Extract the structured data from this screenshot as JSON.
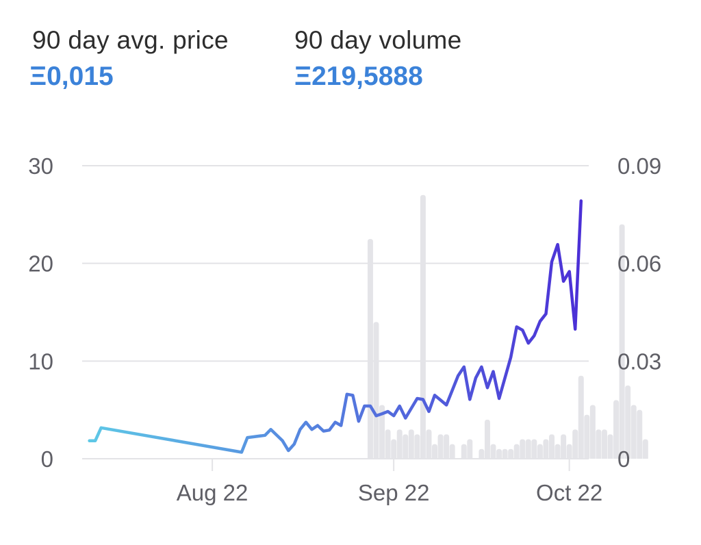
{
  "stats": {
    "avg_price": {
      "label": "90 day avg. price",
      "value": "Ξ0,015"
    },
    "volume": {
      "label": "90 day volume",
      "value": "Ξ219,5888"
    }
  },
  "chart_data": {
    "type": "line",
    "left_axis": {
      "ticks": [
        "0",
        "10",
        "20",
        "30"
      ],
      "range": [
        0,
        30
      ]
    },
    "right_axis": {
      "ticks": [
        "0",
        "0.03",
        "0.06",
        "0.09"
      ],
      "range": [
        0,
        0.09
      ]
    },
    "x_ticks": [
      {
        "label": "Aug 22",
        "day": 22
      },
      {
        "label": "Sep 22",
        "day": 53
      },
      {
        "label": "Oct 22",
        "day": 83
      }
    ],
    "grid": true,
    "colors": {
      "line_start": "#5ec8e6",
      "line_end": "#4b2fd6",
      "bars": "#e4e4e8",
      "grid": "#e3e3e6"
    },
    "series": [
      {
        "kind": "bars",
        "axis": "left",
        "points": [
          [
            49,
            22.5
          ],
          [
            50,
            14
          ],
          [
            51,
            5.5
          ],
          [
            52,
            3
          ],
          [
            53,
            2
          ],
          [
            54,
            3
          ],
          [
            55,
            2.5
          ],
          [
            56,
            3
          ],
          [
            57,
            2.5
          ],
          [
            58,
            27
          ],
          [
            59,
            3
          ],
          [
            60,
            1.5
          ],
          [
            61,
            2.5
          ],
          [
            62,
            2.5
          ],
          [
            63,
            1.5
          ],
          [
            65,
            1.5
          ],
          [
            66,
            2
          ],
          [
            68,
            1
          ],
          [
            69,
            4
          ],
          [
            70,
            1.5
          ],
          [
            71,
            1
          ],
          [
            72,
            1
          ],
          [
            73,
            1
          ],
          [
            74,
            1.5
          ],
          [
            75,
            2
          ],
          [
            76,
            2
          ],
          [
            77,
            2
          ],
          [
            78,
            1.5
          ],
          [
            79,
            2
          ],
          [
            80,
            2.5
          ],
          [
            81,
            1.5
          ],
          [
            82,
            2.5
          ],
          [
            83,
            1.5
          ],
          [
            84,
            3
          ],
          [
            85,
            8.5
          ],
          [
            86,
            4.5
          ],
          [
            87,
            5.5
          ],
          [
            88,
            3
          ],
          [
            89,
            3
          ],
          [
            90,
            2.5
          ],
          [
            91,
            6
          ],
          [
            92,
            24
          ],
          [
            93,
            7.5
          ],
          [
            94,
            5.5
          ],
          [
            95,
            5
          ],
          [
            96,
            2
          ]
        ]
      },
      {
        "kind": "line",
        "axis": "right",
        "points": [
          [
            1,
            0.0055
          ],
          [
            2,
            0.0055
          ],
          [
            3,
            0.0095
          ],
          [
            27,
            0.002
          ],
          [
            28,
            0.0065
          ],
          [
            31,
            0.0072
          ],
          [
            32,
            0.009
          ],
          [
            34,
            0.0055
          ],
          [
            35,
            0.0025
          ],
          [
            36,
            0.0045
          ],
          [
            37,
            0.009
          ],
          [
            38,
            0.0112
          ],
          [
            39,
            0.009
          ],
          [
            40,
            0.0102
          ],
          [
            41,
            0.0085
          ],
          [
            42,
            0.0088
          ],
          [
            43,
            0.0112
          ],
          [
            44,
            0.0102
          ],
          [
            45,
            0.0198
          ],
          [
            46,
            0.0195
          ],
          [
            47,
            0.0115
          ],
          [
            48,
            0.0162
          ],
          [
            49,
            0.0162
          ],
          [
            50,
            0.0132
          ],
          [
            51,
            0.0138
          ],
          [
            52,
            0.0145
          ],
          [
            53,
            0.0132
          ],
          [
            54,
            0.0162
          ],
          [
            55,
            0.0125
          ],
          [
            57,
            0.0185
          ],
          [
            58,
            0.0182
          ],
          [
            59,
            0.0145
          ],
          [
            60,
            0.0195
          ],
          [
            61,
            0.018
          ],
          [
            62,
            0.0165
          ],
          [
            64,
            0.0255
          ],
          [
            65,
            0.0282
          ],
          [
            66,
            0.0182
          ],
          [
            67,
            0.0248
          ],
          [
            68,
            0.0282
          ],
          [
            69,
            0.0218
          ],
          [
            70,
            0.0268
          ],
          [
            71,
            0.0185
          ],
          [
            73,
            0.0312
          ],
          [
            74,
            0.0405
          ],
          [
            75,
            0.0395
          ],
          [
            76,
            0.0355
          ],
          [
            77,
            0.0378
          ],
          [
            78,
            0.0422
          ],
          [
            79,
            0.0445
          ],
          [
            80,
            0.0605
          ],
          [
            81,
            0.0658
          ],
          [
            82,
            0.0545
          ],
          [
            83,
            0.0575
          ],
          [
            84,
            0.0398
          ],
          [
            85,
            0.0792
          ]
        ]
      }
    ]
  }
}
